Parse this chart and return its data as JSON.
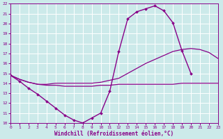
{
  "bg_color": "#cceaea",
  "grid_color": "#aadddd",
  "line_color": "#880088",
  "xlabel": "Windchill (Refroidissement éolien,°C)",
  "xlim": [
    0,
    23
  ],
  "ylim": [
    10,
    22
  ],
  "yticks": [
    10,
    11,
    12,
    13,
    14,
    15,
    16,
    17,
    18,
    19,
    20,
    21,
    22
  ],
  "xticks": [
    0,
    1,
    2,
    3,
    4,
    5,
    6,
    7,
    8,
    9,
    10,
    11,
    12,
    13,
    14,
    15,
    16,
    17,
    18,
    19,
    20,
    21,
    22,
    23
  ],
  "series1_x": [
    0,
    1,
    2,
    3,
    4,
    5,
    6,
    7,
    8,
    9,
    10,
    11,
    12,
    13,
    14,
    15,
    16,
    17,
    18,
    19,
    20
  ],
  "series1_y": [
    14.8,
    14.2,
    13.5,
    12.9,
    12.2,
    11.5,
    10.8,
    10.3,
    10.0,
    10.5,
    11.0,
    13.2,
    17.2,
    20.5,
    21.2,
    21.5,
    21.8,
    21.3,
    20.1,
    17.3,
    15.0
  ],
  "series2_x": [
    0,
    1,
    2,
    3,
    4,
    5,
    6,
    7,
    8,
    9,
    10,
    11,
    12,
    13,
    14,
    15,
    16,
    17,
    18,
    19,
    20,
    21,
    22,
    23
  ],
  "series2_y": [
    14.8,
    14.4,
    14.1,
    13.9,
    13.9,
    14.0,
    14.0,
    14.0,
    14.0,
    14.0,
    14.1,
    14.3,
    14.5,
    15.0,
    15.5,
    16.0,
    16.4,
    16.8,
    17.2,
    17.4,
    17.5,
    17.4,
    17.1,
    16.5
  ],
  "series3_x": [
    0,
    1,
    2,
    3,
    4,
    5,
    6,
    7,
    8,
    9,
    10,
    11,
    12,
    13,
    14,
    15,
    16,
    17,
    18,
    19,
    20,
    21,
    22,
    23
  ],
  "series3_y": [
    14.8,
    14.4,
    14.1,
    13.9,
    13.8,
    13.8,
    13.7,
    13.7,
    13.7,
    13.7,
    13.8,
    13.8,
    13.9,
    13.9,
    13.9,
    13.9,
    13.9,
    13.9,
    13.9,
    14.0,
    14.0,
    14.0,
    14.0,
    14.0
  ]
}
